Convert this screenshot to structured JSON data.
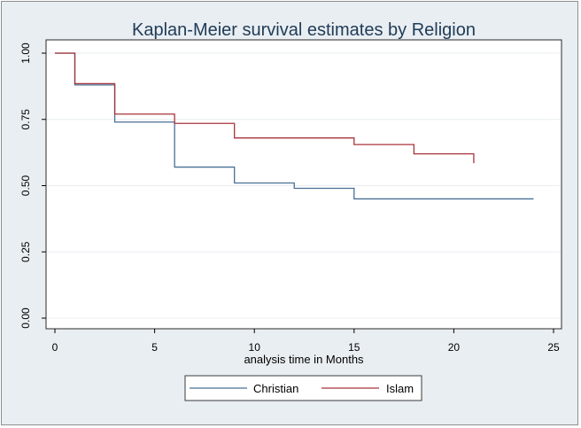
{
  "chart_data": {
    "type": "line",
    "step": true,
    "title": "Kaplan-Meier survival estimates by Religion",
    "xlabel": "analysis time in Months",
    "ylabel": "",
    "xlim": [
      0,
      25
    ],
    "ylim": [
      0,
      1
    ],
    "xticks": [
      0,
      5,
      10,
      15,
      20,
      25
    ],
    "yticks": [
      0,
      0.25,
      0.5,
      0.75,
      1
    ],
    "xtick_labels": [
      "0",
      "5",
      "10",
      "15",
      "20",
      "25"
    ],
    "ytick_labels": [
      "0.00",
      "0.25",
      "0.50",
      "0.75",
      "1.00"
    ],
    "grid": true,
    "legend_position": "bottom",
    "series": [
      {
        "name": "Christian",
        "color": "#4a6f96",
        "x": [
          0,
          1,
          3,
          6,
          9,
          12,
          15,
          24
        ],
        "y": [
          1.0,
          0.88,
          0.74,
          0.57,
          0.51,
          0.49,
          0.45,
          0.45
        ]
      },
      {
        "name": "Islam",
        "color": "#a8343c",
        "x": [
          0,
          1,
          3,
          6,
          9,
          15,
          18,
          21
        ],
        "y": [
          1.0,
          0.885,
          0.77,
          0.735,
          0.68,
          0.655,
          0.62,
          0.585
        ]
      }
    ]
  }
}
